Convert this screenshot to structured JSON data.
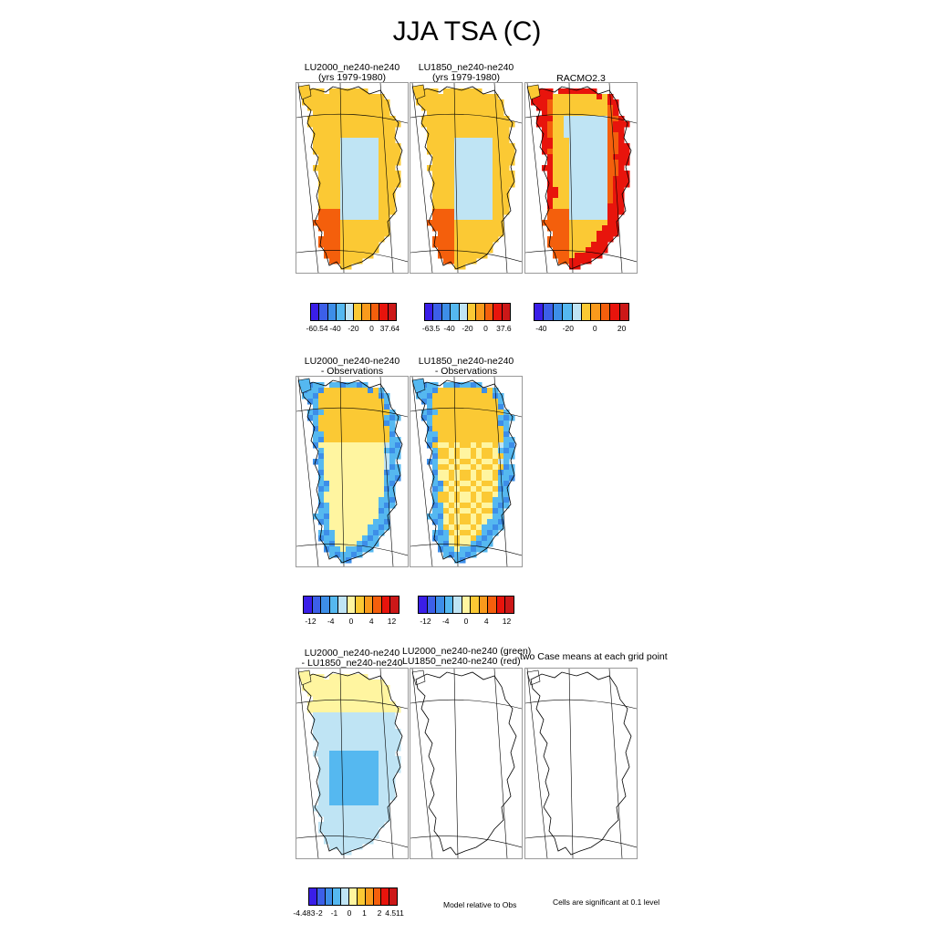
{
  "title": "JJA TSA (C)",
  "row1": {
    "panels": [
      {
        "line1": "LU2000_ne240-ne240",
        "line2": "(yrs 1979-1980)"
      },
      {
        "line1": "LU1850_ne240-ne240",
        "line2": "(yrs 1979-1980)"
      },
      {
        "line1": "RACMO2.3",
        "line2": ""
      }
    ],
    "colorbars": [
      {
        "ticks": [
          "-60.54",
          "-40",
          "-20",
          "0",
          "37.64"
        ]
      },
      {
        "ticks": [
          "-63.5",
          "-40",
          "-20",
          "0",
          "37.6"
        ]
      },
      {
        "ticks": [
          "-40",
          "-20",
          "0",
          "20"
        ]
      }
    ]
  },
  "row2": {
    "panels": [
      {
        "line1": "LU2000_ne240-ne240",
        "line2": "- Observations"
      },
      {
        "line1": "LU1850_ne240-ne240",
        "line2": "- Observations"
      }
    ],
    "colorbars": [
      {
        "ticks": [
          "-12",
          "-4",
          "0",
          "4",
          "12"
        ]
      },
      {
        "ticks": [
          "-12",
          "-4",
          "0",
          "4",
          "12"
        ]
      }
    ]
  },
  "row3": {
    "panels": [
      {
        "line1": "LU2000_ne240-ne240",
        "line2": "- LU1850_ne240-ne240"
      },
      {
        "line1": "LU2000_ne240-ne240 (green)",
        "line2": "LU1850_ne240-ne240 (red)"
      },
      {
        "line1": "two Case means at each grid point",
        "line2": ""
      }
    ],
    "colorbar": {
      "ticks": [
        "-4.483",
        "-2",
        "-1",
        "0",
        "1",
        "2",
        "4.511"
      ]
    },
    "note_left": "Model relative to Obs",
    "note_right": "Cells are significant at 0.1 level"
  },
  "chart_data": [
    {
      "type": "heatmap",
      "title": "LU2000_ne240-ne240 (yrs 1979-1980)",
      "colorbar_ticks": [
        -60.54,
        -40,
        -20,
        0,
        37.64
      ]
    },
    {
      "type": "heatmap",
      "title": "LU1850_ne240-ne240 (yrs 1979-1980)",
      "colorbar_ticks": [
        -63.5,
        -40,
        -20,
        0,
        37.6
      ]
    },
    {
      "type": "heatmap",
      "title": "RACMO2.3",
      "colorbar_ticks": [
        -40,
        -20,
        0,
        20
      ]
    },
    {
      "type": "heatmap",
      "title": "LU2000_ne240-ne240 - Observations",
      "colorbar_ticks": [
        -12,
        -4,
        0,
        4,
        12
      ]
    },
    {
      "type": "heatmap",
      "title": "LU1850_ne240-ne240 - Observations",
      "colorbar_ticks": [
        -12,
        -4,
        0,
        4,
        12
      ]
    },
    {
      "type": "heatmap",
      "title": "LU2000_ne240-ne240 - LU1850_ne240-ne240",
      "colorbar_ticks": [
        -4.483,
        -2,
        -1,
        0,
        1,
        2,
        4.511
      ]
    }
  ],
  "colors": {
    "scale": [
      "#3a1ee8",
      "#3c5fe8",
      "#3d8ee8",
      "#55b8f0",
      "#bfe4f4",
      "#fff5a0",
      "#fbc934",
      "#f99a1c",
      "#f45f0c",
      "#e8140c",
      "#cc1818"
    ],
    "abs_scale": [
      "#3a1ee8",
      "#3c5fe8",
      "#3d8ee8",
      "#55b8f0",
      "#bfe4f4",
      "#fbc934",
      "#f99a1c",
      "#f45f0c",
      "#e8140c",
      "#cc1818"
    ]
  }
}
